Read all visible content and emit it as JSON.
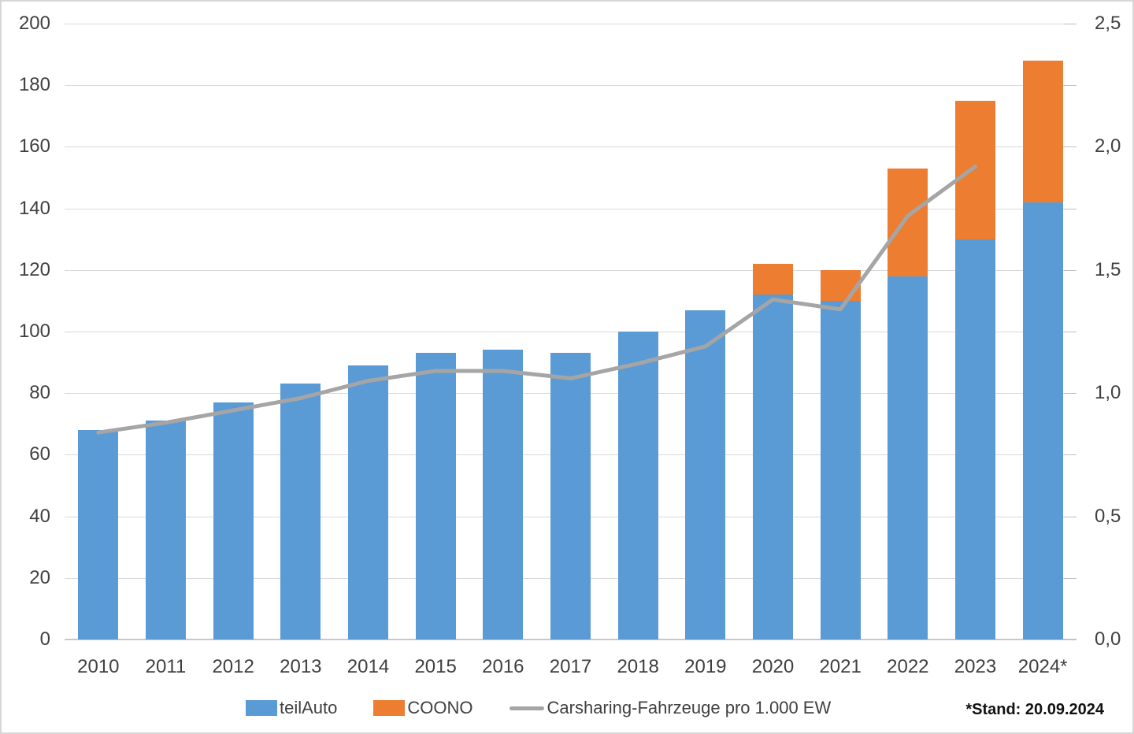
{
  "chart_data": {
    "type": "bar",
    "subtype": "stacked-bars-with-line-overlay",
    "categories": [
      "2010",
      "2011",
      "2012",
      "2013",
      "2014",
      "2015",
      "2016",
      "2017",
      "2018",
      "2019",
      "2020",
      "2021",
      "2022",
      "2023",
      "2024*"
    ],
    "series": [
      {
        "name": "teilAuto",
        "kind": "bar",
        "axis": "left",
        "color": "#5B9BD5",
        "values": [
          68,
          71,
          77,
          83,
          89,
          93,
          94,
          93,
          100,
          107,
          112,
          110,
          118,
          130,
          142
        ]
      },
      {
        "name": "COONO",
        "kind": "bar",
        "axis": "left",
        "color": "#ED7D31",
        "values": [
          0,
          0,
          0,
          0,
          0,
          0,
          0,
          0,
          0,
          0,
          10,
          10,
          35,
          45,
          46
        ]
      },
      {
        "name": "Carsharing-Fahrzeuge pro 1.000 EW",
        "kind": "line",
        "axis": "right",
        "color": "#A5A5A5",
        "values": [
          0.84,
          0.88,
          0.93,
          0.98,
          1.05,
          1.09,
          1.09,
          1.06,
          1.12,
          1.19,
          1.38,
          1.34,
          1.72,
          1.92,
          null
        ]
      }
    ],
    "left_axis": {
      "min": 0,
      "max": 200,
      "step": 20,
      "tick_labels": [
        "0",
        "20",
        "40",
        "60",
        "80",
        "100",
        "120",
        "140",
        "160",
        "180",
        "200"
      ]
    },
    "right_axis": {
      "min": 0,
      "max": 2.5,
      "label_step": 0.5,
      "minor_tick_step": 0.25,
      "tick_labels": [
        "0,0",
        "0,5",
        "1,0",
        "1,5",
        "2,0",
        "2,5"
      ]
    },
    "grid": true,
    "legend_position": "bottom",
    "footnote": "*Stand: 20.09.2024"
  },
  "colors": {
    "gridline": "#D9D9D9",
    "axis_line": "#C8C8C8",
    "tick": "#BFBFBF",
    "text": "#404040",
    "background": "#FFFFFF"
  }
}
